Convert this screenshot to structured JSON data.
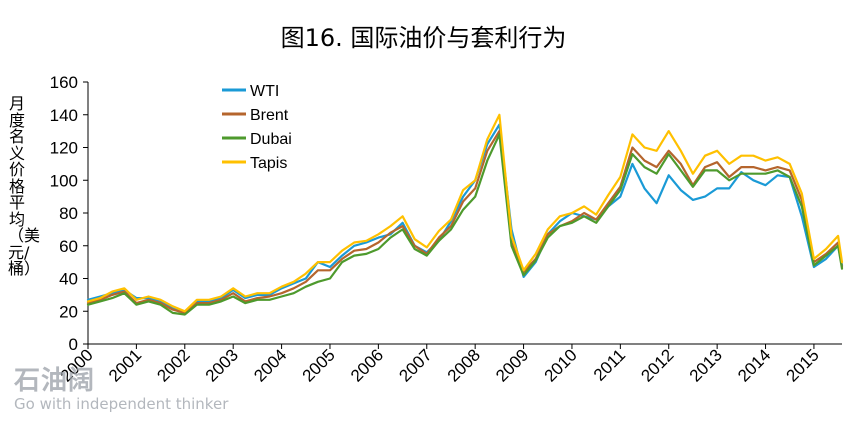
{
  "chart_data": {
    "type": "line",
    "title": "图16. 国际油价与套利行为",
    "ylabel": "月度名义价格平均（美元/桶）",
    "ylim": [
      0,
      160
    ],
    "yticks": [
      "0",
      "20",
      "40",
      "60",
      "80",
      "100",
      "120",
      "140",
      "160"
    ],
    "xticks": [
      "2000",
      "2001",
      "2002",
      "2003",
      "2004",
      "2005",
      "2006",
      "2007",
      "2008",
      "2009",
      "2010",
      "2011",
      "2012",
      "2013",
      "2014",
      "2015"
    ],
    "x_range": [
      2000,
      2015.58
    ],
    "x": [
      2000,
      2000.25,
      2000.5,
      2000.75,
      2001,
      2001.25,
      2001.5,
      2001.75,
      2002,
      2002.25,
      2002.5,
      2002.75,
      2003,
      2003.25,
      2003.5,
      2003.75,
      2004,
      2004.25,
      2004.5,
      2004.75,
      2005,
      2005.25,
      2005.5,
      2005.75,
      2006,
      2006.25,
      2006.5,
      2006.75,
      2007,
      2007.25,
      2007.5,
      2007.75,
      2008,
      2008.25,
      2008.5,
      2008.75,
      2009,
      2009.25,
      2009.5,
      2009.75,
      2010,
      2010.25,
      2010.5,
      2010.75,
      2011,
      2011.25,
      2011.5,
      2011.75,
      2012,
      2012.25,
      2012.5,
      2012.75,
      2013,
      2013.25,
      2013.5,
      2013.75,
      2014,
      2014.25,
      2014.5,
      2014.75,
      2015,
      2015.25,
      2015.5,
      2015.58
    ],
    "grid": false,
    "legend_position": "top-left",
    "series": [
      {
        "name": "WTI",
        "color": "#1a9ad6",
        "values": [
          27,
          29,
          31,
          33,
          28,
          28,
          26,
          22,
          19,
          26,
          26,
          28,
          33,
          28,
          30,
          30,
          34,
          37,
          40,
          50,
          47,
          54,
          60,
          62,
          65,
          67,
          74,
          60,
          56,
          63,
          75,
          90,
          100,
          122,
          134,
          70,
          41,
          50,
          67,
          75,
          80,
          78,
          76,
          84,
          90,
          110,
          95,
          86,
          103,
          94,
          88,
          90,
          95,
          95,
          105,
          100,
          97,
          103,
          102,
          78,
          47,
          52,
          60,
          48
        ]
      },
      {
        "name": "Brent",
        "color": "#b5652d",
        "values": [
          25,
          27,
          30,
          32,
          25,
          27,
          25,
          21,
          19,
          25,
          25,
          27,
          31,
          26,
          28,
          29,
          31,
          34,
          38,
          45,
          45,
          52,
          57,
          58,
          62,
          68,
          72,
          60,
          55,
          65,
          72,
          87,
          95,
          118,
          130,
          62,
          44,
          52,
          67,
          72,
          75,
          80,
          76,
          86,
          96,
          120,
          112,
          108,
          118,
          110,
          97,
          108,
          111,
          102,
          108,
          108,
          106,
          108,
          106,
          88,
          50,
          55,
          62,
          47
        ]
      },
      {
        "name": "Dubai",
        "color": "#4e9a2d",
        "values": [
          24,
          26,
          28,
          31,
          24,
          26,
          24,
          19,
          18,
          24,
          24,
          26,
          29,
          25,
          27,
          27,
          29,
          31,
          35,
          38,
          40,
          50,
          54,
          55,
          58,
          65,
          70,
          58,
          54,
          63,
          70,
          82,
          90,
          112,
          128,
          60,
          42,
          51,
          65,
          72,
          74,
          78,
          74,
          84,
          94,
          116,
          108,
          104,
          116,
          106,
          96,
          106,
          106,
          100,
          104,
          104,
          104,
          106,
          102,
          84,
          48,
          54,
          60,
          46
        ]
      },
      {
        "name": "Tapis",
        "color": "#ffc000",
        "values": [
          26,
          28,
          32,
          34,
          27,
          29,
          27,
          23,
          20,
          27,
          27,
          29,
          34,
          29,
          31,
          31,
          35,
          38,
          43,
          50,
          50,
          57,
          62,
          63,
          67,
          72,
          78,
          64,
          59,
          69,
          76,
          94,
          100,
          125,
          140,
          66,
          45,
          55,
          70,
          78,
          80,
          84,
          79,
          91,
          102,
          128,
          120,
          118,
          130,
          118,
          104,
          115,
          118,
          110,
          115,
          115,
          112,
          114,
          110,
          92,
          52,
          58,
          66,
          50
        ]
      }
    ]
  },
  "watermark": {
    "logo_text": "石油阔",
    "tagline": "Go with independent thinker"
  }
}
